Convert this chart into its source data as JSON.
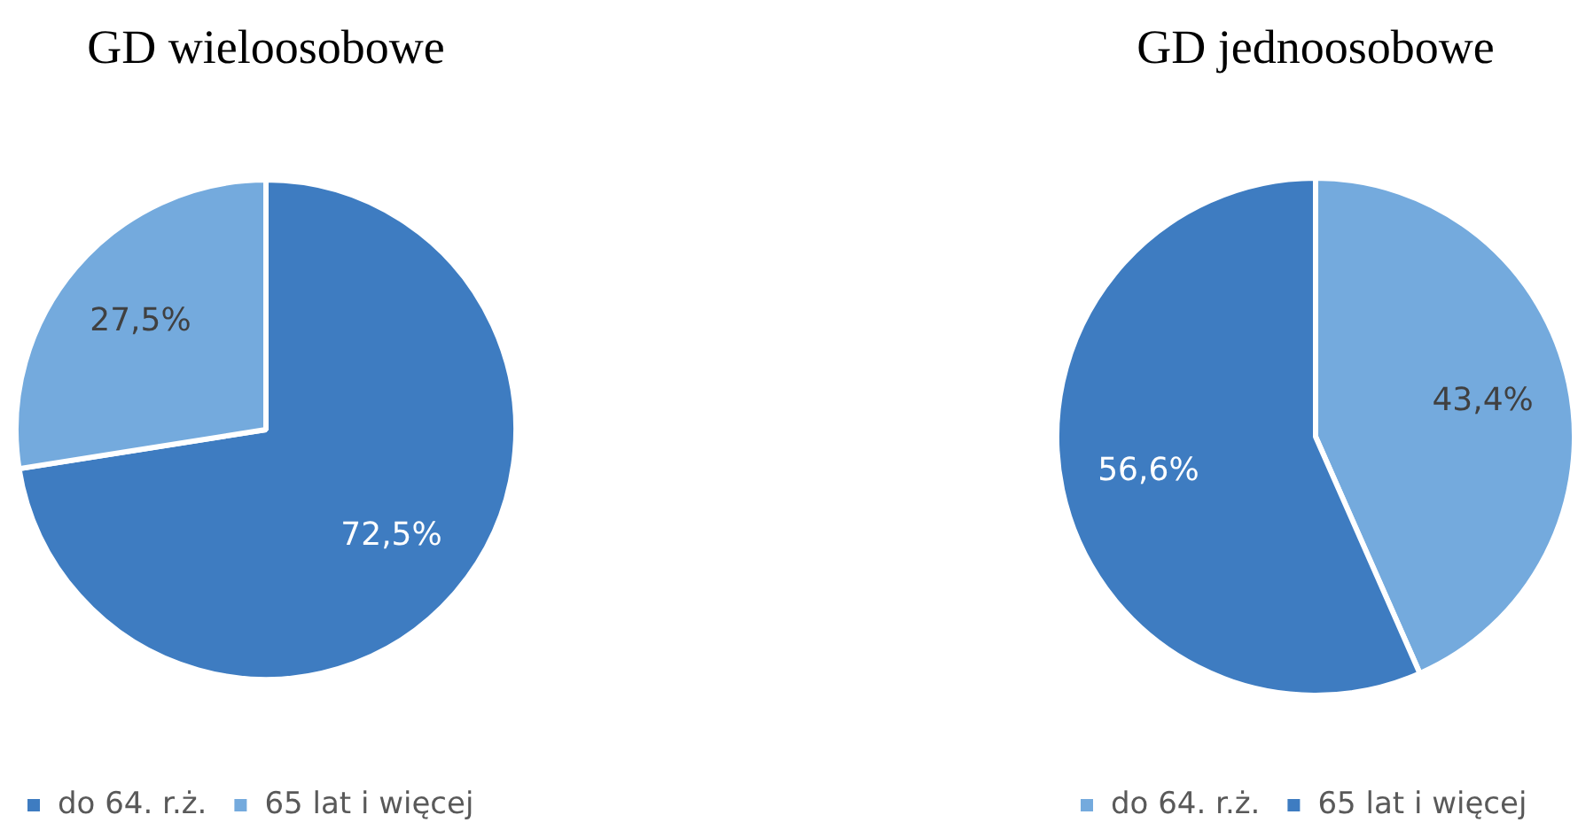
{
  "chart_data": [
    {
      "type": "pie",
      "title": "GD wieloosobowe",
      "categories": [
        "do 64. r.ż.",
        "65 lat i więcej"
      ],
      "values": [
        72.5,
        27.5
      ],
      "colors": [
        "#3e7cc1",
        "#74aadd"
      ],
      "value_labels": [
        "72,5%",
        "27,5%"
      ],
      "legend": "bottom left"
    },
    {
      "type": "pie",
      "title": "GD jednoosobowe",
      "categories": [
        "do 64. r.ż.",
        "65 lat i więcej"
      ],
      "values": [
        43.4,
        56.6
      ],
      "colors": [
        "#74aadd",
        "#3e7cc1"
      ],
      "value_labels": [
        "43,4%",
        "56,6%"
      ],
      "legend": "bottom left"
    }
  ]
}
